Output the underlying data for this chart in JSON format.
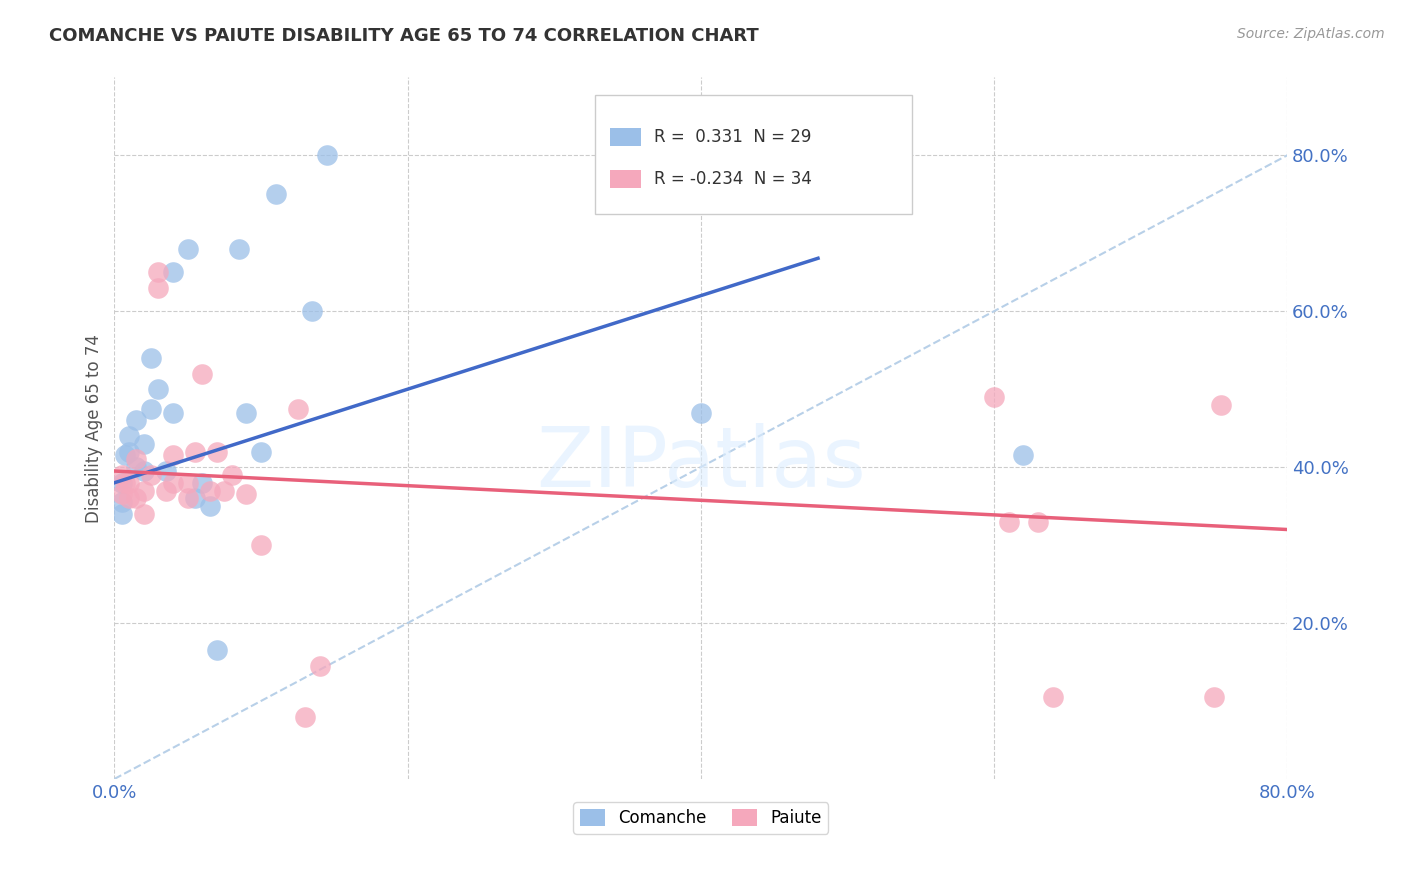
{
  "title": "COMANCHE VS PAIUTE DISABILITY AGE 65 TO 74 CORRELATION CHART",
  "source": "Source: ZipAtlas.com",
  "ylabel": "Disability Age 65 to 74",
  "xlim": [
    0.0,
    0.8
  ],
  "ylim": [
    0.0,
    0.9
  ],
  "xtick_vals": [
    0.0,
    0.8
  ],
  "xtick_labels": [
    "0.0%",
    "80.0%"
  ],
  "ytick_vals": [
    0.2,
    0.4,
    0.6,
    0.8
  ],
  "ytick_labels": [
    "20.0%",
    "40.0%",
    "60.0%",
    "80.0%"
  ],
  "grid_ytick_vals": [
    0.2,
    0.4,
    0.6,
    0.8
  ],
  "grid_xtick_vals": [
    0.0,
    0.2,
    0.4,
    0.6,
    0.8
  ],
  "grid_color": "#cccccc",
  "background_color": "#ffffff",
  "comanche_color": "#9bbfe8",
  "paiute_color": "#f5a8bc",
  "comanche_line_color": "#4169c8",
  "paiute_line_color": "#e8607a",
  "diagonal_color": "#b8d0e8",
  "legend_R_comanche": "0.331",
  "legend_N_comanche": "29",
  "legend_R_paiute": "-0.234",
  "legend_N_paiute": "34",
  "comanche_x": [
    0.005,
    0.005,
    0.005,
    0.007,
    0.01,
    0.01,
    0.015,
    0.015,
    0.02,
    0.02,
    0.025,
    0.025,
    0.03,
    0.035,
    0.04,
    0.04,
    0.05,
    0.055,
    0.06,
    0.065,
    0.07,
    0.085,
    0.09,
    0.1,
    0.11,
    0.135,
    0.145,
    0.4,
    0.62
  ],
  "comanche_y": [
    0.38,
    0.355,
    0.34,
    0.415,
    0.42,
    0.44,
    0.4,
    0.46,
    0.43,
    0.395,
    0.475,
    0.54,
    0.5,
    0.395,
    0.47,
    0.65,
    0.68,
    0.36,
    0.38,
    0.35,
    0.165,
    0.68,
    0.47,
    0.42,
    0.75,
    0.6,
    0.8,
    0.47,
    0.415
  ],
  "paiute_x": [
    0.005,
    0.005,
    0.007,
    0.01,
    0.01,
    0.015,
    0.015,
    0.02,
    0.02,
    0.025,
    0.03,
    0.03,
    0.035,
    0.04,
    0.04,
    0.05,
    0.05,
    0.055,
    0.06,
    0.065,
    0.07,
    0.075,
    0.08,
    0.09,
    0.1,
    0.125,
    0.14,
    0.6,
    0.61,
    0.63,
    0.64,
    0.75,
    0.755,
    0.13
  ],
  "paiute_y": [
    0.39,
    0.365,
    0.38,
    0.38,
    0.36,
    0.41,
    0.36,
    0.37,
    0.34,
    0.39,
    0.65,
    0.63,
    0.37,
    0.38,
    0.415,
    0.38,
    0.36,
    0.42,
    0.52,
    0.37,
    0.42,
    0.37,
    0.39,
    0.365,
    0.3,
    0.475,
    0.145,
    0.49,
    0.33,
    0.33,
    0.105,
    0.105,
    0.48,
    0.08
  ]
}
